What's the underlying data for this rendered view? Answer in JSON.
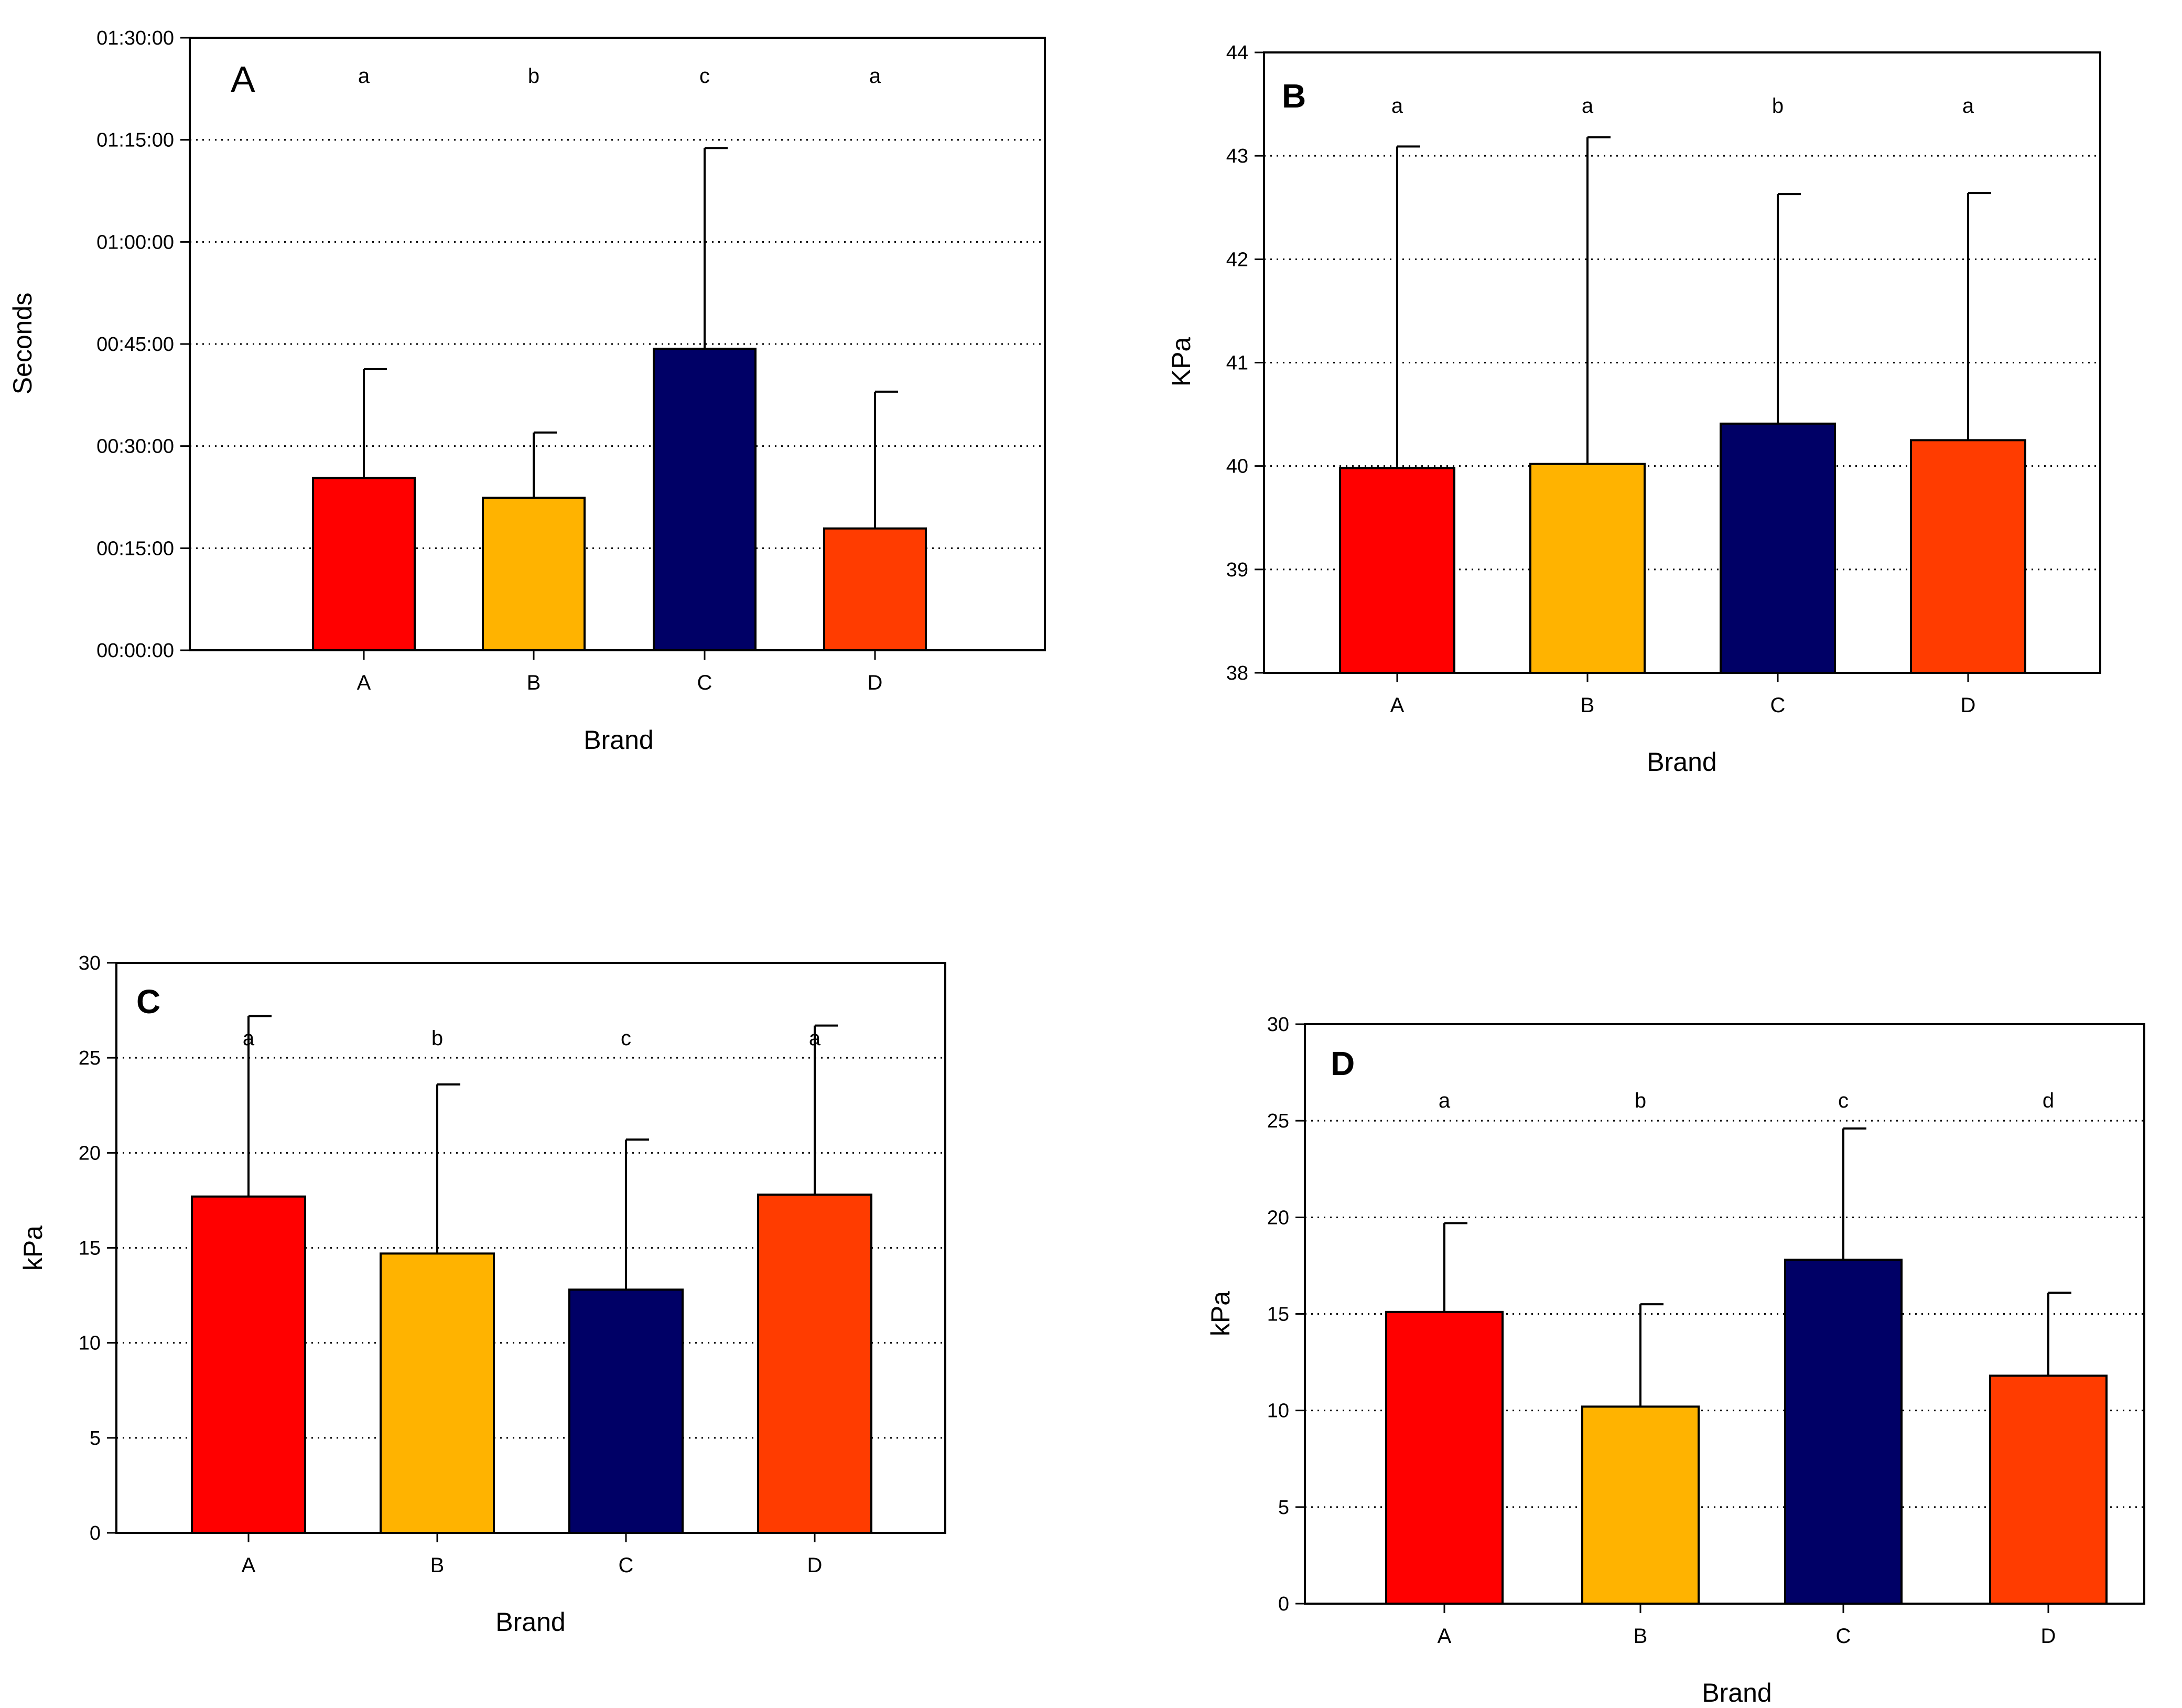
{
  "chart_data": [
    {
      "panel": "A",
      "type": "bar",
      "title": "",
      "xlabel": "Brand",
      "ylabel": "Seconds",
      "categories": [
        "A",
        "B",
        "C",
        "D"
      ],
      "values": [
        25.3,
        22.4,
        44.3,
        17.9
      ],
      "errors": [
        16.0,
        9.6,
        29.5,
        20.1
      ],
      "letters": [
        "a",
        "b",
        "c",
        "a"
      ],
      "colors": [
        "#ff0000",
        "#ffb300",
        "#000066",
        "#ff3c00"
      ],
      "ylim": [
        0,
        90
      ],
      "yticks": [
        0,
        15,
        30,
        45,
        60,
        75,
        90
      ],
      "ytick_labels": [
        "00:00:00",
        "00:15:00",
        "00:30:00",
        "00:45:00",
        "01:00:00",
        "01:15:00",
        "01:30:00"
      ],
      "grid": true,
      "legend": "none"
    },
    {
      "panel": "B",
      "type": "bar",
      "title": "",
      "xlabel": "Brand",
      "ylabel": "KPa",
      "categories": [
        "A",
        "B",
        "C",
        "D"
      ],
      "values": [
        39.98,
        40.02,
        40.41,
        40.25
      ],
      "errors": [
        3.11,
        3.16,
        2.22,
        2.39
      ],
      "letters": [
        "a",
        "a",
        "b",
        "a"
      ],
      "colors": [
        "#ff0000",
        "#ffb300",
        "#000066",
        "#ff3c00"
      ],
      "ylim": [
        38,
        44
      ],
      "yticks": [
        38,
        39,
        40,
        41,
        42,
        43,
        44
      ],
      "ytick_labels": [
        "38",
        "39",
        "40",
        "41",
        "42",
        "43",
        "44"
      ],
      "grid": true,
      "legend": "none"
    },
    {
      "panel": "C",
      "type": "bar",
      "title": "",
      "xlabel": "Brand",
      "ylabel": "kPa",
      "categories": [
        "A",
        "B",
        "C",
        "D"
      ],
      "values": [
        17.7,
        14.7,
        12.8,
        17.8
      ],
      "errors": [
        9.5,
        8.9,
        7.9,
        8.9
      ],
      "letters": [
        "a",
        "b",
        "c",
        "a"
      ],
      "colors": [
        "#ff0000",
        "#ffb300",
        "#000066",
        "#ff3c00"
      ],
      "ylim": [
        0,
        30
      ],
      "yticks": [
        0,
        5,
        10,
        15,
        20,
        25,
        30
      ],
      "ytick_labels": [
        "0",
        "5",
        "10",
        "15",
        "20",
        "25",
        "30"
      ],
      "grid": true,
      "legend": "none"
    },
    {
      "panel": "D",
      "type": "bar",
      "title": "",
      "xlabel": "Brand",
      "ylabel": "kPa",
      "categories": [
        "A",
        "B",
        "C",
        "D"
      ],
      "values": [
        15.1,
        10.2,
        17.8,
        11.8
      ],
      "errors": [
        4.6,
        5.3,
        6.8,
        4.3
      ],
      "letters": [
        "a",
        "b",
        "c",
        "d"
      ],
      "colors": [
        "#ff0000",
        "#ffb300",
        "#000066",
        "#ff3c00"
      ],
      "ylim": [
        0,
        30
      ],
      "yticks": [
        0,
        5,
        10,
        15,
        20,
        25,
        30
      ],
      "ytick_labels": [
        "0",
        "5",
        "10",
        "15",
        "20",
        "25",
        "30"
      ],
      "grid": true,
      "legend": "none"
    }
  ]
}
